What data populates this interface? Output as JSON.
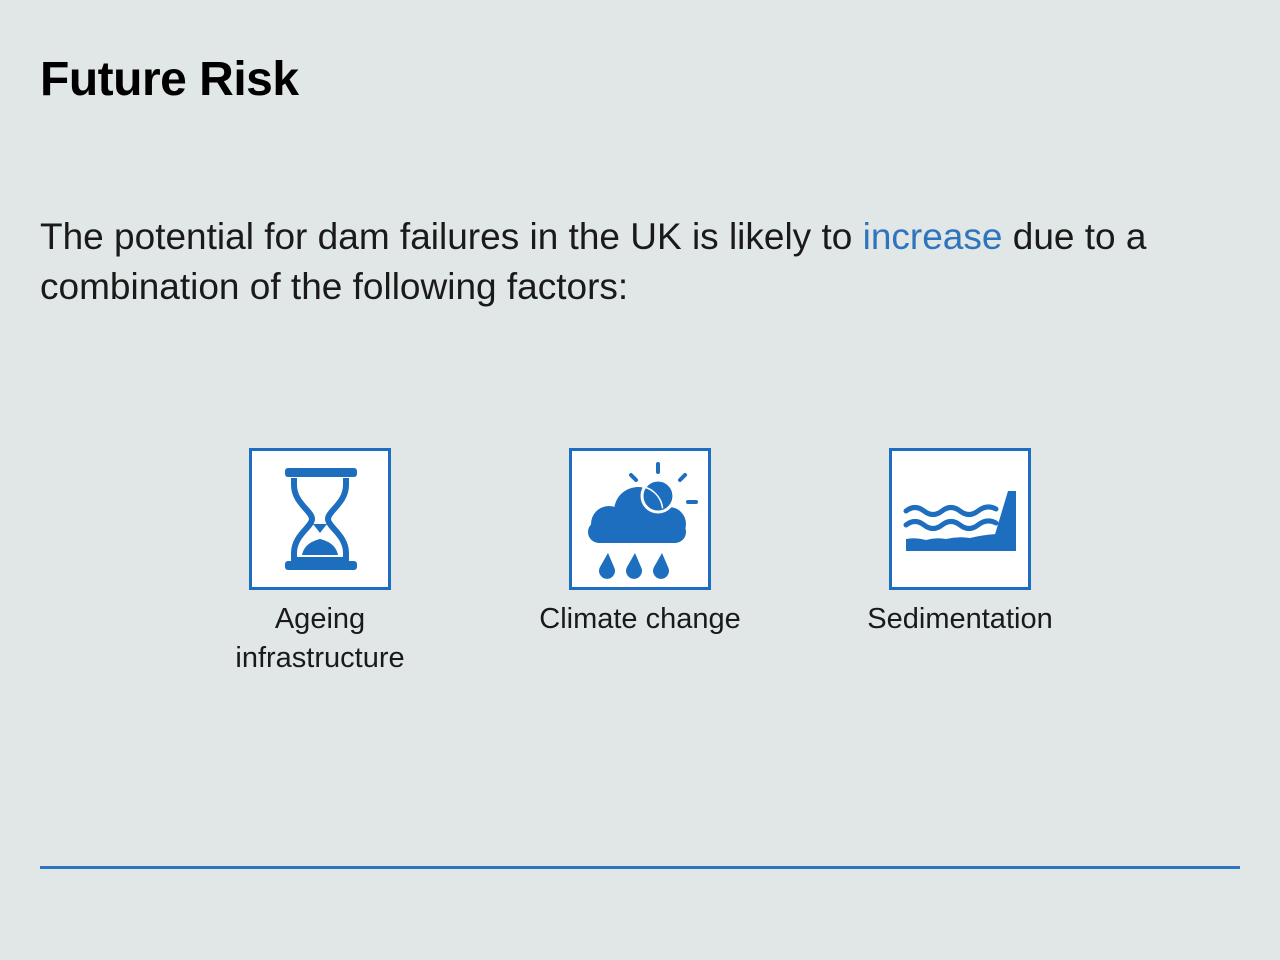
{
  "slide": {
    "title": "Future Risk",
    "intro_before": "The potential for dam failures in the UK is likely to ",
    "intro_highlight": "increase",
    "intro_after": " due to a combination of the following factors:"
  },
  "factors": [
    {
      "label": "Ageing infrastructure",
      "icon": "hourglass-icon"
    },
    {
      "label": "Climate change",
      "icon": "sun-cloud-rain-icon"
    },
    {
      "label": "Sedimentation",
      "icon": "dam-sediment-icon"
    }
  ],
  "colors": {
    "background": "#e1e6e6",
    "accent": "#2f75bd",
    "icon_blue": "#1e6ebf",
    "text": "#1a1a1a"
  }
}
